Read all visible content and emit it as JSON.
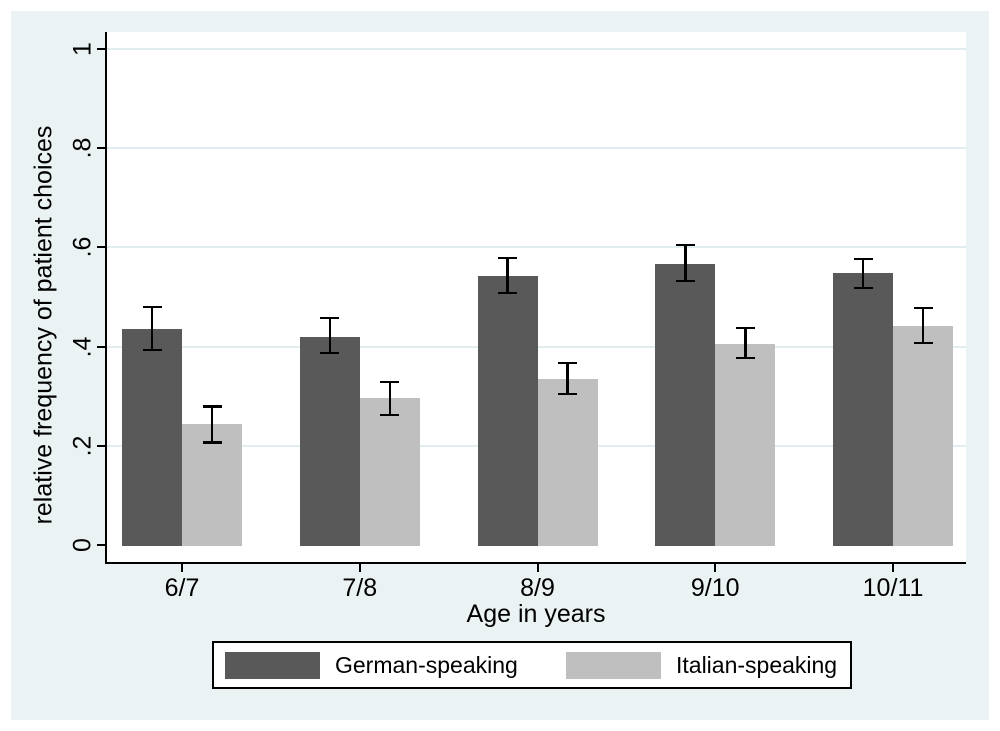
{
  "figure": {
    "canvas_background": "#EAF2F3",
    "plot_background": "#FFFFFF",
    "gridline_color": "#E2EDEF",
    "axis_color": "#000000"
  },
  "chart_data": {
    "type": "bar",
    "title": "",
    "xlabel": "Age in years",
    "ylabel": "relative frequency of patient choices",
    "categories": [
      "6/7",
      "7/8",
      "8/9",
      "9/10",
      "10/11"
    ],
    "series": [
      {
        "name": "German-speaking",
        "color": "#595959",
        "values": [
          0.435,
          0.419,
          0.542,
          0.567,
          0.548
        ],
        "ci_low": [
          0.393,
          0.387,
          0.508,
          0.532,
          0.518
        ],
        "ci_high": [
          0.48,
          0.458,
          0.579,
          0.605,
          0.577
        ]
      },
      {
        "name": "Italian-speaking",
        "color": "#BFBFBF",
        "values": [
          0.244,
          0.296,
          0.335,
          0.405,
          0.442
        ],
        "ci_low": [
          0.206,
          0.262,
          0.304,
          0.377,
          0.407
        ],
        "ci_high": [
          0.28,
          0.329,
          0.367,
          0.438,
          0.478
        ]
      }
    ],
    "ylim": [
      0,
      1
    ],
    "y_ticks": [
      0,
      0.2,
      0.4,
      0.6,
      0.8,
      1
    ],
    "y_tick_labels": [
      "0",
      ".2",
      ".4",
      ".6",
      ".8",
      "1"
    ],
    "grid": "horizontal",
    "error_bars": true,
    "legend_position": "bottom"
  }
}
